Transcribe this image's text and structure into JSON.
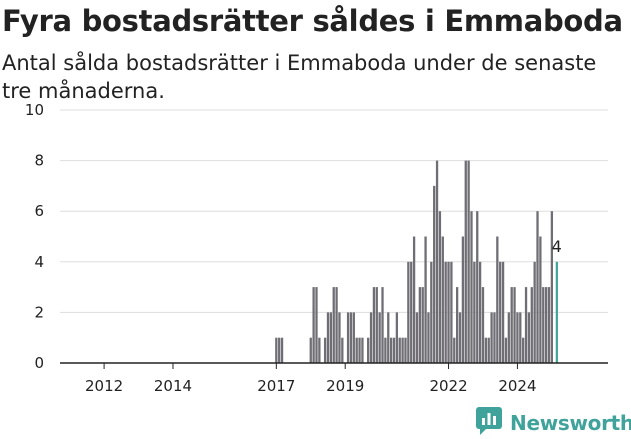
{
  "title": "Fyra bostadsrätter såldes i Emmaboda",
  "subtitle": "Antal sålda bostadsrätter i Emmaboda under de senaste tre månaderna.",
  "brand": {
    "name": "Newsworthy",
    "logo_icon": "newsworthy-logo-icon"
  },
  "colors": {
    "bar": "#6f6e74",
    "highlight": "#3fa39b",
    "grid": "#dddddd",
    "axis": "#222222"
  },
  "chart_data": {
    "type": "bar",
    "x_unit": "month",
    "x_start": "2011-06",
    "x_end": "2024-12",
    "xticks": [
      "2012",
      "2014",
      "2017",
      "2019",
      "2022",
      "2024"
    ],
    "ylim": [
      0,
      10
    ],
    "yticks": [
      0,
      2,
      4,
      6,
      8,
      10
    ],
    "grid": true,
    "series": [
      {
        "bars": [
          {
            "date": "2017-01",
            "value": 1
          },
          {
            "date": "2017-02",
            "value": 1
          },
          {
            "date": "2017-03",
            "value": 1
          },
          {
            "date": "2018-01",
            "value": 1
          },
          {
            "date": "2018-02",
            "value": 3
          },
          {
            "date": "2018-03",
            "value": 3
          },
          {
            "date": "2018-04",
            "value": 1
          },
          {
            "date": "2018-06",
            "value": 1
          },
          {
            "date": "2018-07",
            "value": 2
          },
          {
            "date": "2018-08",
            "value": 2
          },
          {
            "date": "2018-09",
            "value": 3
          },
          {
            "date": "2018-10",
            "value": 3
          },
          {
            "date": "2018-11",
            "value": 2
          },
          {
            "date": "2018-12",
            "value": 1
          },
          {
            "date": "2019-02",
            "value": 2
          },
          {
            "date": "2019-03",
            "value": 2
          },
          {
            "date": "2019-04",
            "value": 2
          },
          {
            "date": "2019-05",
            "value": 1
          },
          {
            "date": "2019-06",
            "value": 1
          },
          {
            "date": "2019-07",
            "value": 1
          },
          {
            "date": "2019-09",
            "value": 1
          },
          {
            "date": "2019-10",
            "value": 2
          },
          {
            "date": "2019-11",
            "value": 3
          },
          {
            "date": "2019-12",
            "value": 3
          },
          {
            "date": "2020-01",
            "value": 2
          },
          {
            "date": "2020-02",
            "value": 3
          },
          {
            "date": "2020-03",
            "value": 1
          },
          {
            "date": "2020-04",
            "value": 2
          },
          {
            "date": "2020-05",
            "value": 1
          },
          {
            "date": "2020-06",
            "value": 1
          },
          {
            "date": "2020-07",
            "value": 2
          },
          {
            "date": "2020-08",
            "value": 1
          },
          {
            "date": "2020-09",
            "value": 1
          },
          {
            "date": "2020-10",
            "value": 1
          },
          {
            "date": "2020-11",
            "value": 4
          },
          {
            "date": "2020-12",
            "value": 4
          },
          {
            "date": "2021-01",
            "value": 5
          },
          {
            "date": "2021-02",
            "value": 2
          },
          {
            "date": "2021-03",
            "value": 3
          },
          {
            "date": "2021-04",
            "value": 3
          },
          {
            "date": "2021-05",
            "value": 5
          },
          {
            "date": "2021-06",
            "value": 2
          },
          {
            "date": "2021-07",
            "value": 4
          },
          {
            "date": "2021-08",
            "value": 7
          },
          {
            "date": "2021-09",
            "value": 8
          },
          {
            "date": "2021-10",
            "value": 6
          },
          {
            "date": "2021-11",
            "value": 5
          },
          {
            "date": "2021-12",
            "value": 4
          },
          {
            "date": "2022-01",
            "value": 4
          },
          {
            "date": "2022-02",
            "value": 4
          },
          {
            "date": "2022-03",
            "value": 1
          },
          {
            "date": "2022-04",
            "value": 3
          },
          {
            "date": "2022-05",
            "value": 2
          },
          {
            "date": "2022-06",
            "value": 5
          },
          {
            "date": "2022-07",
            "value": 8
          },
          {
            "date": "2022-08",
            "value": 8
          },
          {
            "date": "2022-09",
            "value": 6
          },
          {
            "date": "2022-10",
            "value": 4
          },
          {
            "date": "2022-11",
            "value": 6
          },
          {
            "date": "2022-12",
            "value": 4
          },
          {
            "date": "2023-01",
            "value": 3
          },
          {
            "date": "2023-02",
            "value": 1
          },
          {
            "date": "2023-03",
            "value": 1
          },
          {
            "date": "2023-04",
            "value": 2
          },
          {
            "date": "2023-05",
            "value": 2
          },
          {
            "date": "2023-06",
            "value": 5
          },
          {
            "date": "2023-07",
            "value": 4
          },
          {
            "date": "2023-08",
            "value": 4
          },
          {
            "date": "2023-09",
            "value": 1
          },
          {
            "date": "2023-10",
            "value": 2
          },
          {
            "date": "2023-11",
            "value": 3
          },
          {
            "date": "2023-12",
            "value": 3
          },
          {
            "date": "2024-01",
            "value": 2
          },
          {
            "date": "2024-02",
            "value": 2
          },
          {
            "date": "2024-03",
            "value": 1
          },
          {
            "date": "2024-04",
            "value": 3
          },
          {
            "date": "2024-05",
            "value": 2
          },
          {
            "date": "2024-06",
            "value": 3
          },
          {
            "date": "2024-07",
            "value": 4
          },
          {
            "date": "2024-08",
            "value": 6
          },
          {
            "date": "2024-09",
            "value": 5
          },
          {
            "date": "2024-10",
            "value": 3
          },
          {
            "date": "2024-11",
            "value": 3
          },
          {
            "date": "2024-12",
            "value": 3
          },
          {
            "date": "2025-01",
            "value": 6
          },
          {
            "date": "2025-02",
            "value": 4
          }
        ]
      }
    ],
    "highlight": {
      "date": "2025-02",
      "value": 4,
      "label": "4"
    }
  }
}
